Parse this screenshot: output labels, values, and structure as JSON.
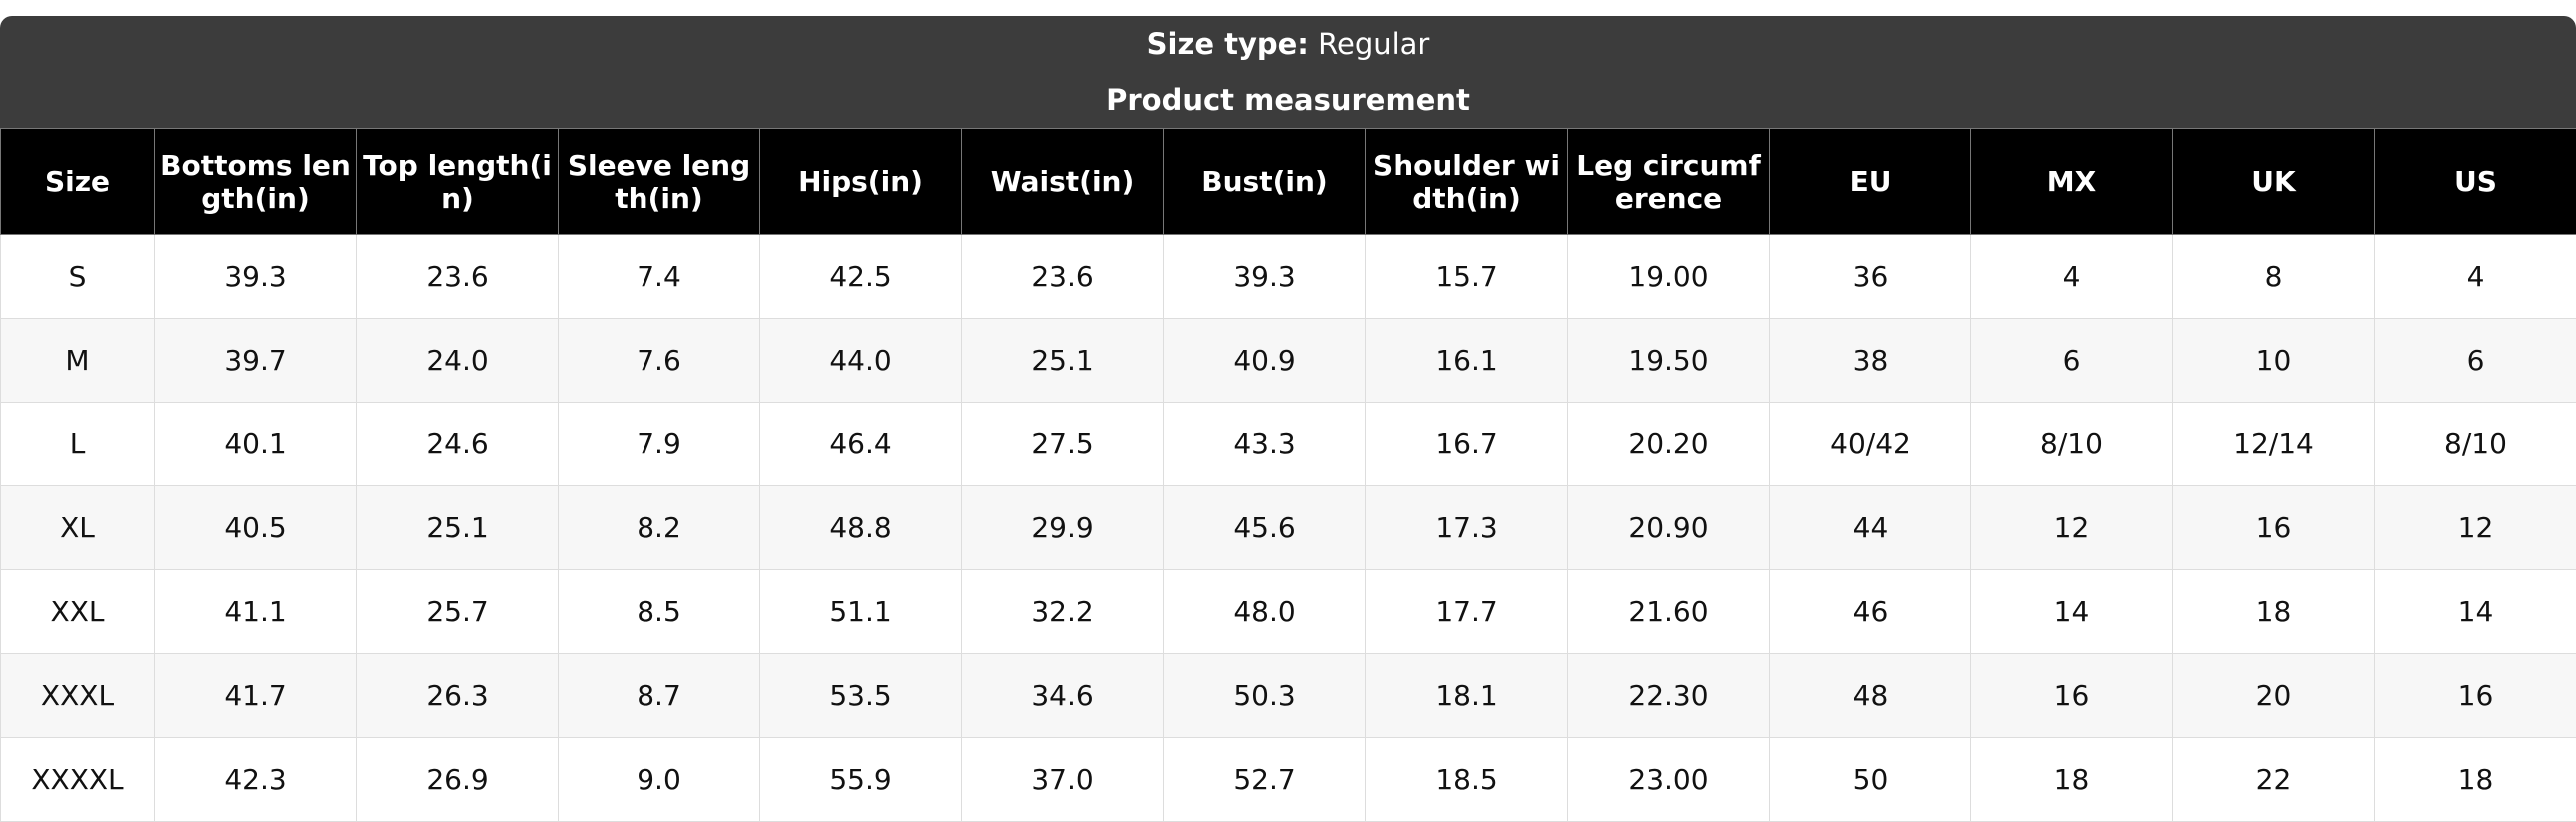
{
  "header": {
    "size_type_label": "Size type:",
    "size_type_value": "Regular",
    "subtitle": "Product measurement"
  },
  "table": {
    "columns": [
      "Size",
      "Bottoms length(in)",
      "Top length(in)",
      "Sleeve length(in)",
      "Hips(in)",
      "Waist(in)",
      "Bust(in)",
      "Shoulder width(in)",
      "Leg circumference",
      "EU",
      "MX",
      "UK",
      "US"
    ],
    "rows": [
      [
        "S",
        "39.3",
        "23.6",
        "7.4",
        "42.5",
        "23.6",
        "39.3",
        "15.7",
        "19.00",
        "36",
        "4",
        "8",
        "4"
      ],
      [
        "M",
        "39.7",
        "24.0",
        "7.6",
        "44.0",
        "25.1",
        "40.9",
        "16.1",
        "19.50",
        "38",
        "6",
        "10",
        "6"
      ],
      [
        "L",
        "40.1",
        "24.6",
        "7.9",
        "46.4",
        "27.5",
        "43.3",
        "16.7",
        "20.20",
        "40/42",
        "8/10",
        "12/14",
        "8/10"
      ],
      [
        "XL",
        "40.5",
        "25.1",
        "8.2",
        "48.8",
        "29.9",
        "45.6",
        "17.3",
        "20.90",
        "44",
        "12",
        "16",
        "12"
      ],
      [
        "XXL",
        "41.1",
        "25.7",
        "8.5",
        "51.1",
        "32.2",
        "48.0",
        "17.7",
        "21.60",
        "46",
        "14",
        "18",
        "14"
      ],
      [
        "XXXL",
        "41.7",
        "26.3",
        "8.7",
        "53.5",
        "34.6",
        "50.3",
        "18.1",
        "22.30",
        "48",
        "16",
        "20",
        "16"
      ],
      [
        "XXXXL",
        "42.3",
        "26.9",
        "9.0",
        "55.9",
        "37.0",
        "52.7",
        "18.5",
        "23.00",
        "50",
        "18",
        "22",
        "18"
      ]
    ]
  }
}
